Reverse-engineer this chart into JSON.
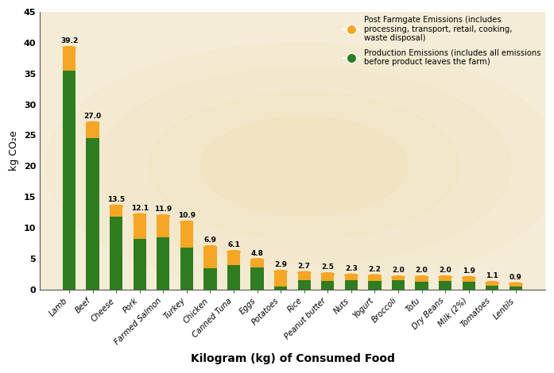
{
  "categories": [
    "Lamb",
    "Beef",
    "Cheese",
    "Pork",
    "Farmed Salmon",
    "Turkey",
    "Chicken",
    "Canned Tuna",
    "Eggs",
    "Potatoes",
    "Rice",
    "Peanut butter",
    "Nuts",
    "Yogurt",
    "Broccoli",
    "Tofu",
    "Dry Beans",
    "Milk (2%)",
    "Tomatoes",
    "Lentils"
  ],
  "total_values": [
    39.2,
    27.0,
    13.5,
    12.1,
    11.9,
    10.9,
    6.9,
    6.1,
    4.8,
    2.9,
    2.7,
    2.5,
    2.3,
    2.2,
    2.0,
    2.0,
    2.0,
    1.9,
    1.1,
    0.9
  ],
  "production_values": [
    35.5,
    24.5,
    11.8,
    8.2,
    8.5,
    6.8,
    3.4,
    4.0,
    3.5,
    0.5,
    1.5,
    1.4,
    1.5,
    1.4,
    1.5,
    1.3,
    1.4,
    1.2,
    0.55,
    0.45
  ],
  "green_color": "#2E7D1F",
  "orange_color": "#F5A623",
  "bg_outer": "#FFFFFF",
  "bg_inner": "#F5ECD7",
  "xlabel": "Kilogram (kg) of Consumed Food",
  "ylabel": "kg CO₂e",
  "ylim": [
    0,
    45
  ],
  "yticks": [
    0,
    5,
    10,
    15,
    20,
    25,
    30,
    35,
    40,
    45
  ],
  "legend_orange_label": "Post Farmgate Emissions (includes\nprocessing, transport, retail, cooking,\nwaste disposal)",
  "legend_green_label": "Production Emissions (includes all emissions\nbefore product leaves the farm)",
  "bar_width": 0.55
}
